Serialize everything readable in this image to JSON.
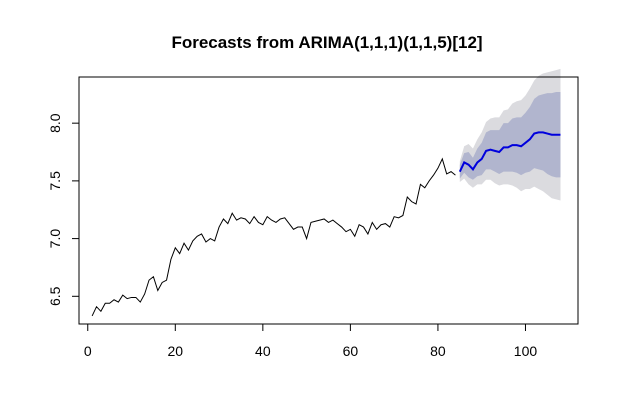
{
  "chart_data": {
    "type": "line",
    "title": "Forecasts from ARIMA(1,1,1)(1,1,5)[12]",
    "xlabel": "",
    "ylabel": "",
    "xlim": [
      -2,
      112
    ],
    "ylim": [
      6.26,
      8.4
    ],
    "xticks": [
      0,
      20,
      40,
      60,
      80,
      100
    ],
    "yticks": [
      6.5,
      7.0,
      7.5,
      8.0
    ],
    "ytick_labels": [
      "6.5",
      "7.0",
      "7.5",
      "8.0"
    ],
    "grid": false,
    "legend": "none",
    "colors": {
      "observed": "#000000",
      "forecast": "#0000dd",
      "band80": "#b1b5ce",
      "band95": "#dbdbdf",
      "axis": "#000000"
    },
    "series": [
      {
        "x": [
          1,
          2,
          3,
          4,
          5,
          6,
          7,
          8,
          9,
          10,
          11,
          12,
          13,
          14,
          15,
          16,
          17,
          18,
          19,
          20,
          21,
          22,
          23,
          24,
          25,
          26,
          27,
          28,
          29,
          30,
          31,
          32,
          33,
          34,
          35,
          36,
          37,
          38,
          39,
          40,
          41,
          42,
          43,
          44,
          45,
          46,
          47,
          48,
          49,
          50,
          51,
          52,
          53,
          54,
          55,
          56,
          57,
          58,
          59,
          60,
          61,
          62,
          63,
          64,
          65,
          66,
          67,
          68,
          69,
          70,
          71,
          72,
          73,
          74,
          75,
          76,
          77,
          78,
          79,
          80,
          81,
          82,
          83,
          84
        ],
        "values": [
          6.33,
          6.41,
          6.37,
          6.44,
          6.44,
          6.47,
          6.45,
          6.51,
          6.48,
          6.49,
          6.49,
          6.45,
          6.52,
          6.64,
          6.67,
          6.55,
          6.62,
          6.64,
          6.82,
          6.92,
          6.87,
          6.96,
          6.9,
          6.98,
          7.02,
          7.04,
          6.97,
          7.0,
          6.98,
          7.1,
          7.17,
          7.13,
          7.22,
          7.16,
          7.18,
          7.17,
          7.13,
          7.19,
          7.14,
          7.12,
          7.19,
          7.16,
          7.14,
          7.17,
          7.18,
          7.13,
          7.08,
          7.1,
          7.1,
          7.0,
          7.14,
          7.15,
          7.16,
          7.17,
          7.14,
          7.16,
          7.13,
          7.1,
          7.06,
          7.08,
          7.02,
          7.12,
          7.1,
          7.04,
          7.14,
          7.08,
          7.12,
          7.13,
          7.1,
          7.19,
          7.18,
          7.2,
          7.36,
          7.32,
          7.3,
          7.47,
          7.44,
          7.5,
          7.55,
          7.61,
          7.69,
          7.56,
          7.58,
          7.55
        ]
      },
      {
        "x": [
          85,
          86,
          87,
          88,
          89,
          90,
          91,
          92,
          93,
          94,
          95,
          96,
          97,
          98,
          99,
          100,
          101,
          102,
          103,
          104,
          105,
          106,
          107,
          108
        ],
        "values": [
          7.58,
          7.66,
          7.64,
          7.6,
          7.66,
          7.69,
          7.76,
          7.77,
          7.76,
          7.75,
          7.79,
          7.79,
          7.81,
          7.81,
          7.8,
          7.83,
          7.86,
          7.91,
          7.92,
          7.92,
          7.91,
          7.9,
          7.9,
          7.9
        ],
        "lo80": [
          7.52,
          7.57,
          7.53,
          7.51,
          7.54,
          7.55,
          7.6,
          7.6,
          7.58,
          7.56,
          7.58,
          7.58,
          7.58,
          7.57,
          7.55,
          7.57,
          7.58,
          7.61,
          7.6,
          7.59,
          7.56,
          7.54,
          7.53,
          7.53
        ],
        "hi80": [
          7.64,
          7.74,
          7.75,
          7.7,
          7.78,
          7.83,
          7.92,
          7.94,
          7.94,
          7.94,
          8.0,
          8.0,
          8.04,
          8.05,
          8.05,
          8.09,
          8.14,
          8.21,
          8.24,
          8.25,
          8.26,
          8.26,
          8.27,
          8.27
        ],
        "lo95": [
          7.49,
          7.52,
          7.47,
          7.44,
          7.47,
          7.47,
          7.51,
          7.51,
          7.48,
          7.46,
          7.47,
          7.47,
          7.46,
          7.44,
          7.41,
          7.43,
          7.43,
          7.45,
          7.43,
          7.41,
          7.38,
          7.35,
          7.34,
          7.33
        ],
        "hi95": [
          7.67,
          7.8,
          7.82,
          7.78,
          7.86,
          7.92,
          8.01,
          8.04,
          8.05,
          8.05,
          8.11,
          8.12,
          8.17,
          8.19,
          8.2,
          8.24,
          8.3,
          8.37,
          8.41,
          8.43,
          8.44,
          8.45,
          8.46,
          8.47
        ]
      }
    ]
  }
}
